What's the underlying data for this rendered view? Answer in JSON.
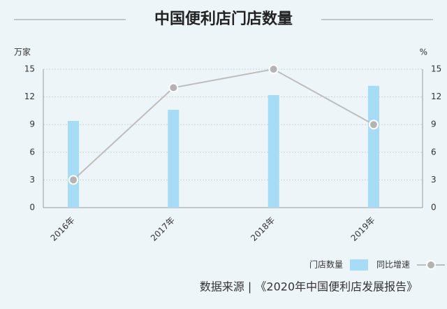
{
  "chart_data": {
    "type": "combo",
    "title": "中国便利店门店数量",
    "y_label": "万家",
    "y2_label": "%",
    "categories": [
      "2016年",
      "2017年",
      "2018年",
      "2019年"
    ],
    "series": [
      {
        "name": "门店数量",
        "type": "bar",
        "color": "#a6dcf5",
        "values": [
          9.4,
          10.6,
          12.2,
          13.2
        ]
      },
      {
        "name": "同比增速",
        "type": "line",
        "color": "#bdbdbd",
        "axis": "y2",
        "values": [
          3,
          13,
          15,
          9
        ]
      }
    ],
    "ylim": [
      0,
      15
    ],
    "yticks": [
      0,
      3,
      6,
      9,
      12,
      15
    ],
    "y2lim": [
      0,
      15
    ],
    "y2ticks": [
      0,
      3,
      6,
      9,
      12,
      15
    ],
    "grid": true,
    "legend": "bottom-right",
    "source": "数据来源 | 《2020年中国便利店发展报告》"
  }
}
